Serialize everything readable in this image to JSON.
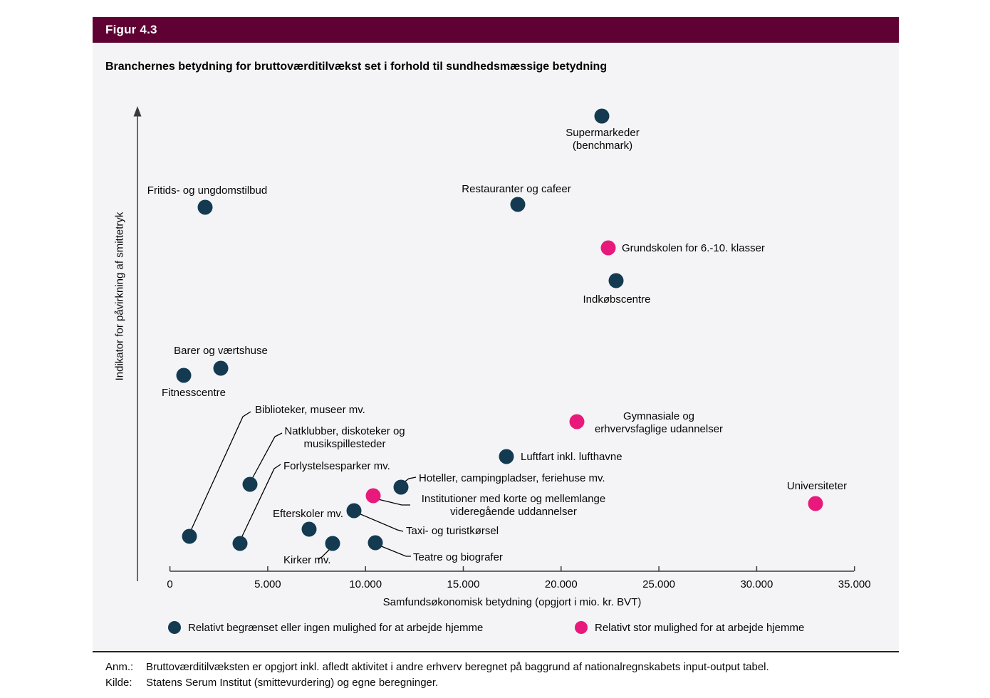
{
  "figure": {
    "tag": "Figur 4.3",
    "title": "Branchernes betydning for bruttoværditilvækst set i forhold til sundhedsmæssige betydning"
  },
  "chart_data": {
    "type": "scatter",
    "title": "Branchernes betydning for bruttoværditilvækst set i forhold til sundhedsmæssige betydning",
    "xlabel": "Samfundsøkonomisk betydning (opgjort i mio. kr. BVT)",
    "ylabel": "Indikator for påvirkning af smittetryk",
    "xlim": [
      0,
      35000
    ],
    "x_tick_values": [
      0,
      5000,
      10000,
      15000,
      20000,
      25000,
      30000,
      35000
    ],
    "x_ticks": [
      "0",
      "5.000",
      "10.000",
      "15.000",
      "20.000",
      "25.000",
      "30.000",
      "35.000"
    ],
    "y_scale": "relative (no numeric ticks shown); y values estimated 0-100",
    "grid": false,
    "legend_position": "bottom",
    "series": [
      {
        "name": "Relativt begrænset eller ingen mulighed for at arbejde hjemme",
        "color": "#133a51",
        "points": [
          {
            "id": "supermarkeder",
            "label": [
              "Supermarkeder",
              "(benchmark)"
            ],
            "x": 22100,
            "y": 98.0
          },
          {
            "id": "restauranter",
            "label": [
              "Restauranter og cafeer"
            ],
            "x": 17800,
            "y": 79.0
          },
          {
            "id": "fritids",
            "label": [
              "Fritids- og ungdomstilbud"
            ],
            "x": 1800,
            "y": 78.4
          },
          {
            "id": "indkobscentre",
            "label": [
              "Indkøbscentre"
            ],
            "x": 22800,
            "y": 62.6
          },
          {
            "id": "barer",
            "label": [
              "Barer og værtshuse"
            ],
            "x": 2600,
            "y": 43.7
          },
          {
            "id": "fitnesscentre",
            "label": [
              "Fitnesscentre"
            ],
            "x": 700,
            "y": 42.2
          },
          {
            "id": "luftfart",
            "label": [
              "Luftfart inkl. lufthavne"
            ],
            "x": 17200,
            "y": 24.7
          },
          {
            "id": "natklubber",
            "label": [
              "Natklubber, diskoteker og",
              "musikspillesteder"
            ],
            "x": 4100,
            "y": 18.7
          },
          {
            "id": "hoteller",
            "label": [
              "Hoteller, campingpladser, feriehuse mv."
            ],
            "x": 11800,
            "y": 18.1
          },
          {
            "id": "taxi",
            "label": [
              "Taxi- og turistkørsel"
            ],
            "x": 9400,
            "y": 13.0
          },
          {
            "id": "efterskoler",
            "label": [
              "Efterskoler mv."
            ],
            "x": 7100,
            "y": 9.0
          },
          {
            "id": "biblioteker",
            "label": [
              "Biblioteker, museer mv."
            ],
            "x": 1000,
            "y": 7.5
          },
          {
            "id": "teatre",
            "label": [
              "Teatre og biografer"
            ],
            "x": 10500,
            "y": 6.1
          },
          {
            "id": "forlystelsesparker",
            "label": [
              "Forlystelsesparker mv."
            ],
            "x": 3600,
            "y": 6.0
          },
          {
            "id": "kirker",
            "label": [
              "Kirker mv."
            ],
            "x": 8300,
            "y": 6.0
          }
        ]
      },
      {
        "name": "Relativt stor mulighed for at arbejde hjemme",
        "color": "#e9197b",
        "points": [
          {
            "id": "grundskolen",
            "label": [
              "Grundskolen for 6.-10. klasser"
            ],
            "x": 22400,
            "y": 69.6
          },
          {
            "id": "gymnasiale",
            "label": [
              "Gymnasiale og",
              "erhvervsfaglige udannelser"
            ],
            "x": 20800,
            "y": 32.2
          },
          {
            "id": "institutioner",
            "label": [
              "Institutioner med korte og mellemlange",
              "videregående uddannelser"
            ],
            "x": 10400,
            "y": 16.3
          },
          {
            "id": "universiteter",
            "label": [
              "Universiteter"
            ],
            "x": 33000,
            "y": 14.5
          }
        ]
      }
    ]
  },
  "notes": {
    "anm_label": "Anm.:",
    "anm_text": "Bruttoværditilvæksten er opgjort inkl. afledt aktivitet i andre erhverv beregnet på baggrund af nationalregnskabets input-output tabel.",
    "kilde_label": "Kilde:",
    "kilde_text": "Statens Serum Institut (smittevurdering) og egne beregninger."
  }
}
